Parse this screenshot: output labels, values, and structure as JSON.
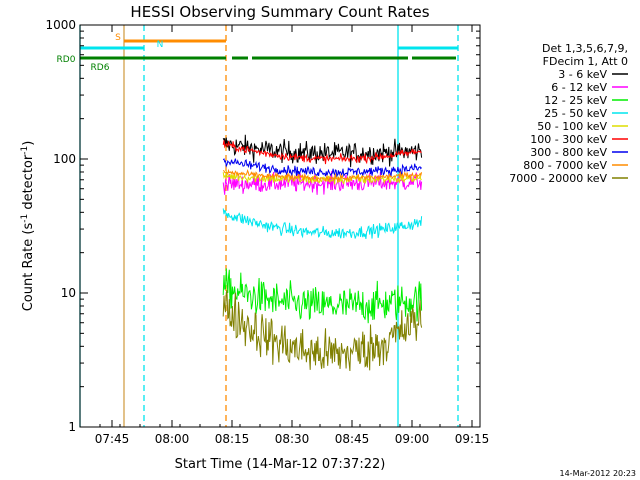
{
  "chart_data": {
    "type": "line",
    "title": "HESSI Observing Summary Count Rates",
    "xlabel": "Start Time (14-Mar-12 07:37:22)",
    "ylabel_main": "Count Rate (s",
    "ylabel_sup1": "-1",
    "ylabel_mid": " detector",
    "ylabel_sup2": "-1",
    "ylabel_end": ")",
    "x_unit": "minutes since 07:37",
    "xlim": [
      0,
      100
    ],
    "yscale": "log",
    "ylim": [
      1,
      1000
    ],
    "x_ticks": [
      {
        "x": 8,
        "label": "07:45"
      },
      {
        "x": 23,
        "label": "08:00"
      },
      {
        "x": 38,
        "label": "08:15"
      },
      {
        "x": 53,
        "label": "08:30"
      },
      {
        "x": 68,
        "label": "08:45"
      },
      {
        "x": 83,
        "label": "09:00"
      },
      {
        "x": 98,
        "label": "09:15"
      }
    ],
    "y_ticks": [
      {
        "y": 1,
        "label": "1"
      },
      {
        "y": 10,
        "label": "10"
      },
      {
        "y": 100,
        "label": "100"
      },
      {
        "y": 1000,
        "label": "1000"
      }
    ],
    "legend": {
      "placement": "right",
      "header": [
        "Det 1,3,5,6,7,9,",
        "FDecim 1, Att 0"
      ]
    },
    "series": [
      {
        "name": "3 - 6 keV",
        "color": "#000000",
        "start": 130,
        "mid": 110,
        "end": 115,
        "noise": 0.07
      },
      {
        "name": "6 - 12 keV",
        "color": "#ff00ff",
        "start": 65,
        "mid": 66,
        "end": 68,
        "noise": 0.06
      },
      {
        "name": "12 - 25 keV",
        "color": "#00ee00",
        "start": 11,
        "mid": 8,
        "end": 9,
        "noise": 0.12
      },
      {
        "name": "25 - 50 keV",
        "color": "#00e5ee",
        "start": 40,
        "mid": 28,
        "end": 34,
        "noise": 0.04
      },
      {
        "name": "50 - 100 keV",
        "color": "#dddd00",
        "start": 75,
        "mid": 70,
        "end": 72,
        "noise": 0.03
      },
      {
        "name": "100 - 300 keV",
        "color": "#ff0000",
        "start": 130,
        "mid": 100,
        "end": 115,
        "noise": 0.025
      },
      {
        "name": "300 - 800 keV",
        "color": "#0000ee",
        "start": 98,
        "mid": 80,
        "end": 86,
        "noise": 0.03
      },
      {
        "name": "800 - 7000 keV",
        "color": "#ff8c00",
        "start": 80,
        "mid": 72,
        "end": 77,
        "noise": 0.02
      },
      {
        "name": "7000 - 20000 keV",
        "color": "#808000",
        "start": 8,
        "mid": 3.5,
        "end": 6.5,
        "noise": 0.15
      }
    ],
    "data_window": {
      "x_start": 35.8,
      "x_end": 85.4
    },
    "vertical_markers": [
      {
        "x": 0,
        "color": "#00e5ee",
        "style": "solid"
      },
      {
        "x": 11,
        "color": "#d2a04a",
        "style": "solid"
      },
      {
        "x": 16,
        "color": "#00e5ee",
        "style": "dashed"
      },
      {
        "x": 36.5,
        "color": "#ff8c00",
        "style": "dashed"
      },
      {
        "x": 79.5,
        "color": "#00e5ee",
        "style": "solid"
      },
      {
        "x": 94.5,
        "color": "#00e5ee",
        "style": "dashed"
      }
    ],
    "bars": [
      {
        "label": "S",
        "color": "#ff8c00",
        "segments": [
          [
            11,
            36.5
          ]
        ]
      },
      {
        "label": "N",
        "color": "#00e5ee",
        "segments": [
          [
            0,
            16
          ],
          [
            79.5,
            94.5
          ]
        ]
      },
      {
        "label": "RD0",
        "color": "#008000",
        "segments": [
          [
            0,
            36.5
          ],
          [
            38,
            42
          ],
          [
            43,
            82
          ],
          [
            83,
            94
          ]
        ]
      },
      {
        "label": "RD6",
        "color": "#008000",
        "segments": []
      }
    ],
    "footer_timestamp": "14-Mar-2012 20:23"
  }
}
